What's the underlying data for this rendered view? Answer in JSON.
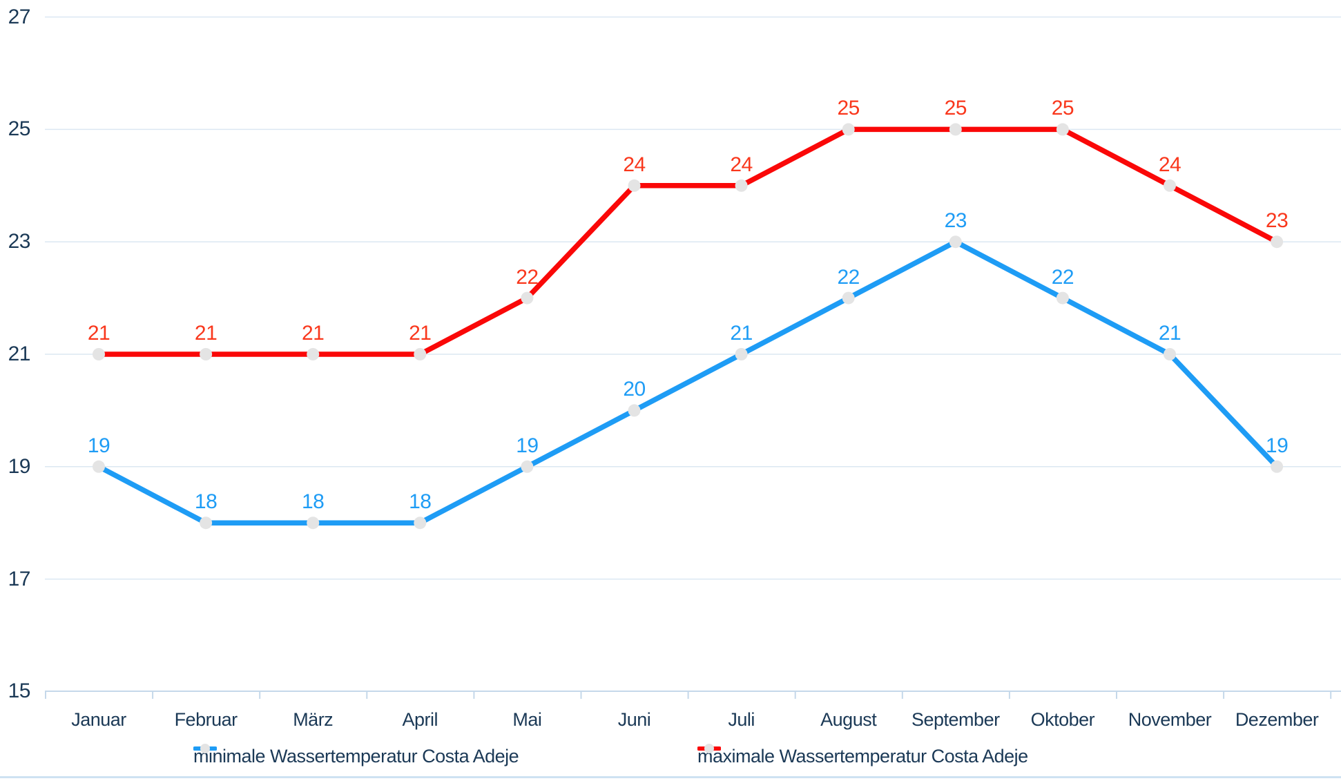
{
  "chart_data": {
    "type": "line",
    "categories": [
      "Januar",
      "Februar",
      "März",
      "April",
      "Mai",
      "Juni",
      "Juli",
      "August",
      "September",
      "Oktober",
      "November",
      "Dezember"
    ],
    "series": [
      {
        "name": "minimale Wassertemperatur Costa Adeje",
        "color": "#1E9CF5",
        "label_color": "#1E9CF5",
        "values": [
          19,
          18,
          18,
          18,
          19,
          20,
          21,
          22,
          23,
          22,
          21,
          19
        ]
      },
      {
        "name": "maximale Wassertemperatur Costa Adeje",
        "color": "#FA0808",
        "label_color": "#F9371C",
        "values": [
          21,
          21,
          21,
          21,
          22,
          24,
          24,
          25,
          25,
          25,
          24,
          23
        ]
      }
    ],
    "yticks": [
      27,
      25,
      23,
      21,
      19,
      17,
      15
    ],
    "ylim": [
      15,
      27
    ],
    "grid": true,
    "legend_position": "bottom",
    "data_labels": true,
    "marker_color": "#E4E4E4",
    "axis_text_color": "#1B3956",
    "grid_color": "#DBE7F2",
    "axis_line_color": "#C5D8EA",
    "bottom_border_color": "#CEE2F2"
  }
}
